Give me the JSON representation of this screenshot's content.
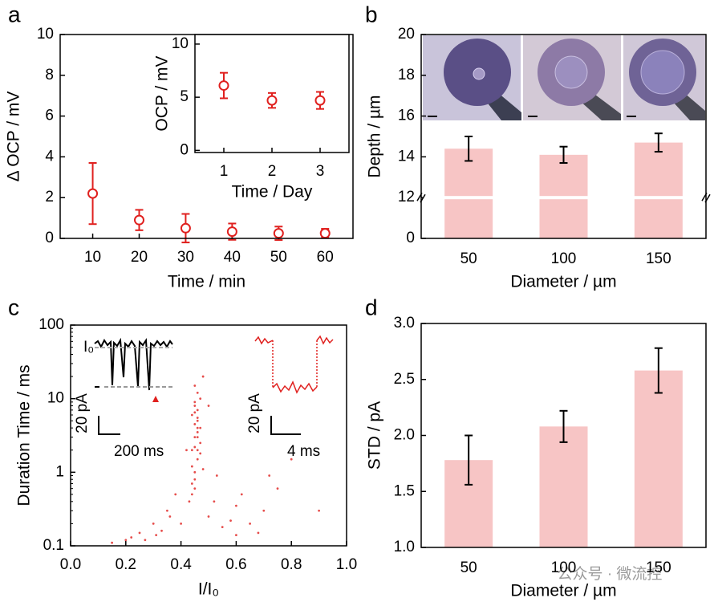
{
  "chart_data": [
    {
      "type": "scatter",
      "label": "a",
      "x_label": "Time / min",
      "y_label": "Δ OCP / mV",
      "x": [
        10,
        20,
        30,
        40,
        50,
        60
      ],
      "values": [
        2.2,
        0.9,
        0.5,
        0.33,
        0.25,
        0.25
      ],
      "errors": [
        1.5,
        0.5,
        0.7,
        0.4,
        0.33,
        0.22
      ],
      "color": "#e0201e",
      "error_color": "#e0201e",
      "marker": "open-circle",
      "xlim": [
        3,
        66
      ],
      "xticks": [
        10,
        20,
        30,
        40,
        50,
        60
      ],
      "ylim": [
        0,
        10
      ],
      "yticks": [
        0,
        2,
        4,
        6,
        8,
        10
      ]
    },
    {
      "type": "scatter",
      "inset": true,
      "x_label": "Time / Day",
      "y_label": "OCP / mV",
      "x": [
        1,
        2,
        3
      ],
      "values": [
        6.1,
        4.7,
        4.7
      ],
      "errors": [
        1.2,
        0.7,
        0.8
      ],
      "color": "#e0201e",
      "error_color": "#e0201e",
      "marker": "open-circle",
      "xlim": [
        0.4,
        3.6
      ],
      "xticks": [
        1,
        2,
        3
      ],
      "ylim": [
        -0.2,
        10.9
      ],
      "yticks": [
        0,
        5,
        10
      ]
    },
    {
      "type": "bar",
      "label": "b",
      "x_label": "Diameter / µm",
      "y_label": "Depth / µm",
      "categories": [
        "50",
        "100",
        "150"
      ],
      "values": [
        14.4,
        14.1,
        14.7
      ],
      "errors": [
        0.6,
        0.4,
        0.45
      ],
      "color": "#f7c5c5",
      "error_color": "#000000",
      "broken_axis": true,
      "ylim": [
        0,
        20
      ],
      "yticks": [
        0,
        12,
        14,
        16,
        18,
        20
      ]
    },
    {
      "type": "scatter",
      "label": "c",
      "x_label": "I/I₀",
      "y_label": "Duration Time / ms",
      "log_y": true,
      "x": [
        0.45,
        0.46,
        0.44,
        0.47,
        0.45,
        0.46,
        0.45,
        0.44,
        0.46,
        0.47,
        0.45,
        0.46,
        0.44,
        0.45,
        0.46,
        0.47,
        0.45,
        0.46,
        0.45,
        0.44,
        0.46,
        0.45,
        0.47,
        0.46,
        0.45,
        0.44,
        0.46,
        0.45,
        0.48,
        0.43,
        0.2,
        0.25,
        0.3,
        0.35,
        0.38,
        0.5,
        0.55,
        0.6,
        0.65,
        0.7,
        0.75,
        0.15,
        0.22,
        0.33,
        0.52,
        0.58,
        0.62,
        0.68,
        0.8,
        0.9,
        0.4,
        0.42,
        0.5,
        0.53,
        0.36,
        0.31,
        0.27,
        0.6,
        0.72,
        0.48
      ],
      "values": [
        3,
        5,
        2,
        4,
        8,
        1.5,
        1,
        6,
        12,
        2.5,
        0.8,
        3.5,
        1.2,
        0.6,
        7,
        10,
        4.5,
        2,
        15,
        0.5,
        5.5,
        9,
        1.8,
        3,
        2.2,
        0.7,
        4,
        6.5,
        1.1,
        0.4,
        0.12,
        0.15,
        0.2,
        0.3,
        0.5,
        0.25,
        0.18,
        0.14,
        0.2,
        0.3,
        0.6,
        0.11,
        0.13,
        0.16,
        0.4,
        0.22,
        0.5,
        0.15,
        1.5,
        0.3,
        0.2,
        2,
        8,
        0.9,
        0.25,
        0.14,
        0.12,
        0.35,
        0.9,
        20
      ],
      "color": "#e0201e",
      "marker": "dot",
      "xlim": [
        0,
        1
      ],
      "xticks": [
        {
          "value": 0,
          "label": "0.0"
        },
        0.2,
        0.4,
        0.6,
        0.8,
        {
          "value": 1,
          "label": "1.0"
        }
      ],
      "ylim": [
        0.1,
        100
      ],
      "yticks": [
        0.1,
        1,
        10,
        100
      ],
      "annotations": [
        "I₀",
        "20 pA",
        "200 ms",
        "20 pA",
        "4 ms"
      ]
    },
    {
      "type": "bar",
      "label": "d",
      "x_label": "Diameter / µm",
      "y_label": "STD / pA",
      "categories": [
        "50",
        "100",
        "150"
      ],
      "values": [
        1.78,
        2.08,
        2.58
      ],
      "errors": [
        0.22,
        0.14,
        0.2
      ],
      "color": "#f7c5c5",
      "error_color": "#000000",
      "ylim": [
        1.0,
        3.0
      ],
      "yticks": [
        {
          "value": 1,
          "label": "1.0"
        },
        1.5,
        {
          "value": 2,
          "label": "2.0"
        },
        2.5,
        {
          "value": 3,
          "label": "3.0"
        }
      ]
    }
  ],
  "watermark": "公众号 · 微流控"
}
